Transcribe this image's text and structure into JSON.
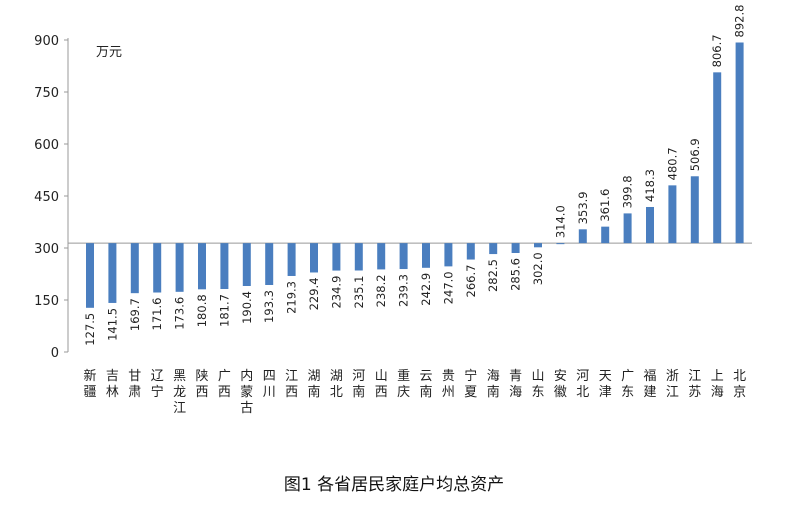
{
  "caption": "图1 各省居民家庭户均总资产",
  "chart_data": {
    "type": "bar",
    "title": "",
    "xlabel": "",
    "ylabel": "万元",
    "ylim": [
      0,
      900
    ],
    "yticks": [
      0,
      150,
      300,
      450,
      600,
      750,
      900
    ],
    "baseline": 314.0,
    "grid": false,
    "bar_color": "#4a7ebf",
    "categories": [
      "新疆",
      "吉林",
      "甘肃",
      "辽宁",
      "黑龙江",
      "陕西",
      "广西",
      "内蒙古",
      "四川",
      "江西",
      "湖南",
      "湖北",
      "河南",
      "山西",
      "重庆",
      "云南",
      "贵州",
      "宁夏",
      "海南",
      "青海",
      "山东",
      "安徽",
      "河北",
      "天津",
      "广东",
      "福建",
      "浙江",
      "江苏",
      "上海",
      "北京"
    ],
    "values": [
      127.5,
      141.5,
      169.7,
      171.6,
      173.6,
      180.8,
      181.7,
      190.4,
      193.3,
      219.3,
      229.4,
      234.9,
      235.1,
      238.2,
      239.3,
      242.9,
      247.0,
      266.7,
      282.5,
      285.6,
      302.0,
      314.0,
      353.9,
      361.6,
      399.8,
      418.3,
      480.7,
      506.9,
      806.7,
      892.8
    ],
    "value_labels": [
      "127.5",
      "141.5",
      "169.7",
      "171.6",
      "173.6",
      "180.8",
      "181.7",
      "190.4",
      "193.3",
      "219.3",
      "229.4",
      "234.9",
      "235.1",
      "238.2",
      "239.3",
      "242.9",
      "247.0",
      "266.7",
      "282.5",
      "285.6",
      "302.0",
      "314.0",
      "353.9",
      "361.6",
      "399.8",
      "418.3",
      "480.7",
      "506.9",
      "806.7",
      "892.8"
    ]
  }
}
